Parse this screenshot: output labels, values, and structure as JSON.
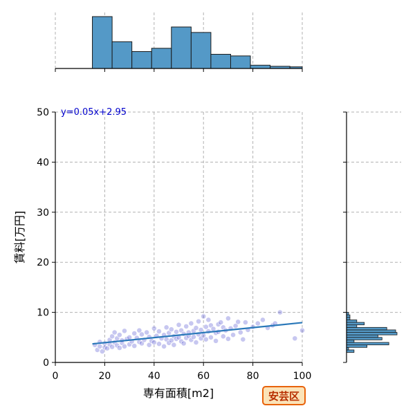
{
  "colors": {
    "bar_fill": "#5499c7",
    "bar_stroke": "#1a1a1a",
    "point": "#4444cc",
    "fit_line": "#2a78b9",
    "equation": "#0000cc",
    "grid": "#b0b0b0",
    "badge_fill": "#fbe3b8",
    "badge_stroke": "#e8620a",
    "badge_text": "#b82e00"
  },
  "chart_data": {
    "type": "scatter",
    "xlabel": "専有面積[m2]",
    "ylabel": "賃料[万円]",
    "xlim": [
      0,
      100
    ],
    "ylim": [
      0,
      50
    ],
    "xticks": [
      0,
      20,
      40,
      60,
      80,
      100
    ],
    "yticks": [
      0,
      10,
      20,
      30,
      40,
      50
    ],
    "grid": true,
    "equation": "y=0.05x+2.95",
    "badge": "安芸区",
    "regression": {
      "slope": 0.05,
      "intercept": 2.95,
      "x_range": [
        15,
        100
      ]
    },
    "points": [
      [
        16,
        3.5
      ],
      [
        17,
        2.5
      ],
      [
        18,
        3.2
      ],
      [
        18,
        4.1
      ],
      [
        19,
        2.2
      ],
      [
        20,
        3.8
      ],
      [
        20,
        3.0
      ],
      [
        21,
        2.8
      ],
      [
        22,
        4.5
      ],
      [
        22,
        3.6
      ],
      [
        23,
        5.2
      ],
      [
        23,
        3.1
      ],
      [
        24,
        4.0
      ],
      [
        24,
        6.0
      ],
      [
        25,
        3.4
      ],
      [
        25,
        4.8
      ],
      [
        26,
        2.9
      ],
      [
        26,
        5.5
      ],
      [
        27,
        3.9
      ],
      [
        27,
        4.4
      ],
      [
        28,
        3.2
      ],
      [
        28,
        6.3
      ],
      [
        29,
        4.7
      ],
      [
        30,
        3.6
      ],
      [
        30,
        5.0
      ],
      [
        31,
        4.2
      ],
      [
        32,
        5.8
      ],
      [
        32,
        3.3
      ],
      [
        33,
        4.9
      ],
      [
        34,
        6.4
      ],
      [
        34,
        4.1
      ],
      [
        35,
        3.8
      ],
      [
        35,
        5.6
      ],
      [
        36,
        4.5
      ],
      [
        37,
        6.0
      ],
      [
        38,
        3.5
      ],
      [
        38,
        5.1
      ],
      [
        39,
        4.3
      ],
      [
        40,
        6.8
      ],
      [
        40,
        4.0
      ],
      [
        41,
        5.3
      ],
      [
        42,
        3.7
      ],
      [
        42,
        6.2
      ],
      [
        43,
        4.8
      ],
      [
        44,
        5.5
      ],
      [
        44,
        3.2
      ],
      [
        45,
        4.6
      ],
      [
        45,
        7.0
      ],
      [
        46,
        5.9
      ],
      [
        46,
        3.9
      ],
      [
        47,
        4.4
      ],
      [
        47,
        6.6
      ],
      [
        48,
        5.2
      ],
      [
        48,
        3.5
      ],
      [
        49,
        6.1
      ],
      [
        49,
        4.7
      ],
      [
        50,
        7.5
      ],
      [
        50,
        5.0
      ],
      [
        51,
        4.2
      ],
      [
        51,
        6.4
      ],
      [
        52,
        5.7
      ],
      [
        52,
        3.8
      ],
      [
        53,
        7.2
      ],
      [
        53,
        4.9
      ],
      [
        54,
        6.0
      ],
      [
        54,
        5.3
      ],
      [
        55,
        4.5
      ],
      [
        55,
        7.8
      ],
      [
        56,
        6.3
      ],
      [
        56,
        5.1
      ],
      [
        57,
        4.0
      ],
      [
        57,
        6.9
      ],
      [
        58,
        5.6
      ],
      [
        58,
        8.2
      ],
      [
        59,
        4.8
      ],
      [
        59,
        6.5
      ],
      [
        60,
        9.2
      ],
      [
        60,
        5.4
      ],
      [
        61,
        7.1
      ],
      [
        61,
        4.6
      ],
      [
        62,
        6.2
      ],
      [
        62,
        8.5
      ],
      [
        63,
        5.0
      ],
      [
        63,
        7.4
      ],
      [
        64,
        6.7
      ],
      [
        65,
        4.3
      ],
      [
        65,
        5.9
      ],
      [
        66,
        7.6
      ],
      [
        66,
        6.1
      ],
      [
        67,
        8.0
      ],
      [
        68,
        5.2
      ],
      [
        68,
        7.0
      ],
      [
        69,
        6.4
      ],
      [
        70,
        4.7
      ],
      [
        70,
        8.8
      ],
      [
        71,
        6.8
      ],
      [
        72,
        5.5
      ],
      [
        73,
        7.3
      ],
      [
        74,
        8.1
      ],
      [
        75,
        6.0
      ],
      [
        76,
        4.6
      ],
      [
        77,
        8.0
      ],
      [
        78,
        6.5
      ],
      [
        80,
        7.1
      ],
      [
        82,
        7.8
      ],
      [
        84,
        8.5
      ],
      [
        86,
        6.9
      ],
      [
        88,
        7.4
      ],
      [
        89,
        7.8
      ],
      [
        91,
        10.0
      ],
      [
        97,
        4.8
      ],
      [
        100,
        6.4
      ]
    ],
    "top_histogram": {
      "bin_edges": [
        15,
        23,
        31,
        39,
        47,
        55,
        63,
        71,
        79,
        87,
        95,
        100
      ],
      "counts": [
        95,
        49,
        31,
        37,
        76,
        66,
        26,
        23,
        6,
        4,
        3
      ]
    },
    "right_histogram": {
      "bin_edges": [
        2.0,
        2.5,
        3.0,
        3.5,
        4.0,
        4.5,
        5.0,
        5.5,
        6.0,
        6.5,
        7.0,
        7.5,
        8.0,
        8.5,
        9.0,
        9.5,
        10.0
      ],
      "counts": [
        11,
        3,
        30,
        62,
        11,
        52,
        46,
        74,
        72,
        59,
        15,
        26,
        15,
        5,
        5,
        3
      ]
    }
  }
}
